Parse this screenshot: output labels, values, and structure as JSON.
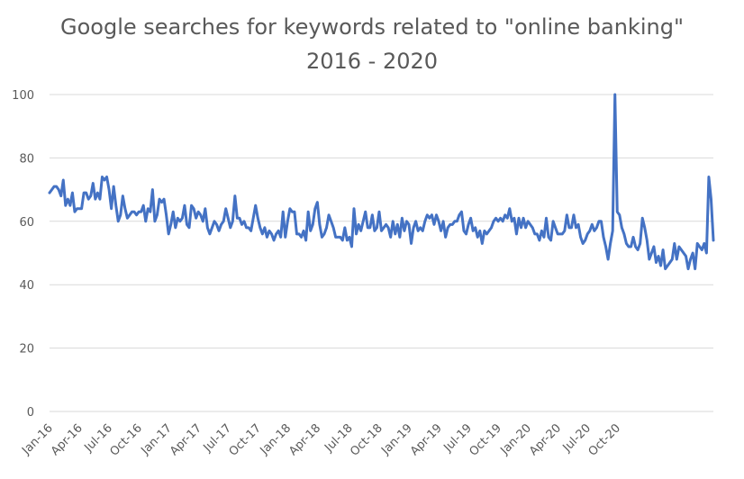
{
  "chart_data": {
    "type": "line",
    "title": "Google searches for keywords related to \"online banking\"",
    "subtitle": "2016 - 2020",
    "xlabel": "",
    "ylabel": "",
    "ylim": [
      0,
      100
    ],
    "yticks": [
      0,
      20,
      40,
      60,
      80,
      100
    ],
    "xticks": [
      "Jan-16",
      "Apr-16",
      "Jul-16",
      "Oct-16",
      "Jan-17",
      "Apr-17",
      "Jul-17",
      "Oct-17",
      "Jan-18",
      "Apr-18",
      "Jul-18",
      "Oct-18",
      "Jan-19",
      "Apr-19",
      "Jul-19",
      "Oct-19",
      "Jan-20",
      "Apr-20",
      "Jul-20",
      "Oct-20"
    ],
    "grid": true,
    "line_color": "#4472c4",
    "series": [
      {
        "values": [
          69,
          70,
          71,
          71,
          70,
          68,
          73,
          65,
          67,
          65,
          69,
          63,
          64,
          64,
          64,
          69,
          69,
          67,
          68,
          72,
          67,
          69,
          67,
          74,
          73,
          74,
          70,
          64,
          71,
          65,
          60,
          62,
          68,
          64,
          61,
          62,
          63,
          63,
          62,
          63,
          63,
          65,
          60,
          64,
          63,
          70,
          60,
          62,
          67,
          66,
          67,
          62,
          56,
          59,
          63,
          58,
          61,
          60,
          61,
          65,
          59,
          58,
          65,
          64,
          61,
          63,
          62,
          60,
          64,
          58,
          56,
          58,
          60,
          59,
          57,
          59,
          60,
          64,
          61,
          58,
          60,
          68,
          61,
          61,
          59,
          60,
          58,
          58,
          57,
          61,
          65,
          61,
          58,
          56,
          58,
          55,
          57,
          56,
          54,
          56,
          57,
          55,
          63,
          55,
          60,
          64,
          63,
          63,
          56,
          56,
          55,
          57,
          54,
          63,
          57,
          59,
          64,
          66,
          59,
          55,
          56,
          58,
          62,
          60,
          58,
          55,
          55,
          55,
          54,
          58,
          54,
          55,
          52,
          64,
          56,
          59,
          57,
          60,
          63,
          58,
          58,
          62,
          57,
          58,
          63,
          57,
          58,
          59,
          58,
          55,
          60,
          56,
          59,
          55,
          61,
          57,
          60,
          59,
          53,
          58,
          60,
          57,
          58,
          57,
          60,
          62,
          61,
          62,
          59,
          62,
          60,
          57,
          60,
          55,
          58,
          59,
          59,
          60,
          60,
          62,
          63,
          57,
          56,
          59,
          61,
          57,
          58,
          55,
          57,
          53,
          57,
          56,
          57,
          58,
          60,
          61,
          60,
          61,
          60,
          62,
          61,
          64,
          60,
          61,
          56,
          61,
          58,
          61,
          58,
          60,
          59,
          58,
          56,
          56,
          54,
          57,
          55,
          61,
          55,
          54,
          60,
          58,
          56,
          56,
          56,
          57,
          62,
          58,
          58,
          62,
          58,
          59,
          55,
          53,
          54,
          56,
          57,
          59,
          57,
          58,
          60,
          60,
          55,
          52,
          48,
          53,
          57,
          100,
          63,
          62,
          58,
          56,
          53,
          52,
          52,
          55,
          52,
          51,
          53,
          61,
          58,
          54,
          48,
          50,
          52,
          47,
          49,
          46,
          51,
          45,
          46,
          47,
          48,
          53,
          48,
          52,
          51,
          50,
          49,
          45,
          48,
          50,
          45,
          53,
          52,
          51,
          53,
          50,
          74,
          67,
          54
        ]
      }
    ]
  }
}
